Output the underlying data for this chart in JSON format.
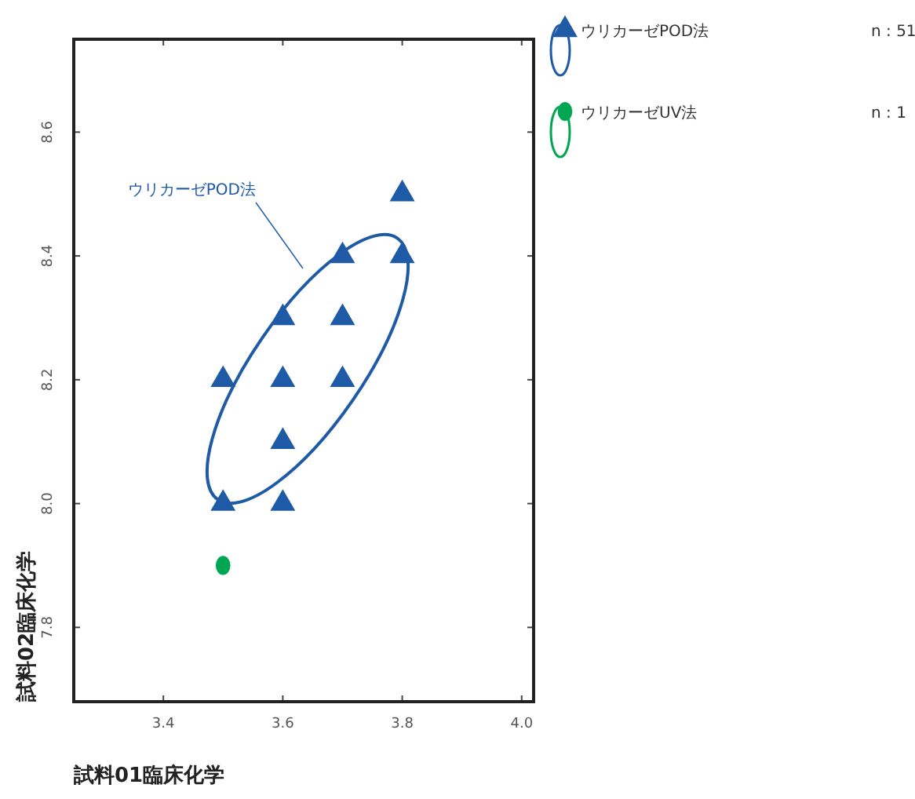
{
  "chart_data": {
    "type": "scatter",
    "xlabel": "試料01臨床化学",
    "ylabel": "試料02臨床化学",
    "xlim": [
      3.25,
      4.02
    ],
    "xticks": [
      3.4,
      3.6,
      3.8,
      {
        "value": 4,
        "label": "4.0"
      }
    ],
    "ylim": [
      7.68,
      8.75
    ],
    "yticks": [
      7.8,
      {
        "value": 8,
        "label": "8.0"
      },
      8.2,
      8.4,
      8.6
    ],
    "grid": false,
    "legend": "top right",
    "series": [
      {
        "name": "ウリカーゼPOD法",
        "color": "#1f5aa6",
        "marker": "triangle",
        "x": [
          3.5,
          3.5,
          3.6,
          3.6,
          3.6,
          3.6,
          3.7,
          3.7,
          3.7,
          3.8,
          3.8
        ],
        "values": [
          8.2,
          8.0,
          8.3,
          8.2,
          8.1,
          8.0,
          8.4,
          8.3,
          8.2,
          8.5,
          8.4
        ]
      },
      {
        "name": "ウリカーゼUV法",
        "color": "#00a651",
        "marker": "circle",
        "x": [
          3.5
        ],
        "values": [
          7.9
        ]
      }
    ],
    "annotations": [
      "ウリカーゼPOD法",
      "n : 51",
      "n : 1"
    ]
  }
}
